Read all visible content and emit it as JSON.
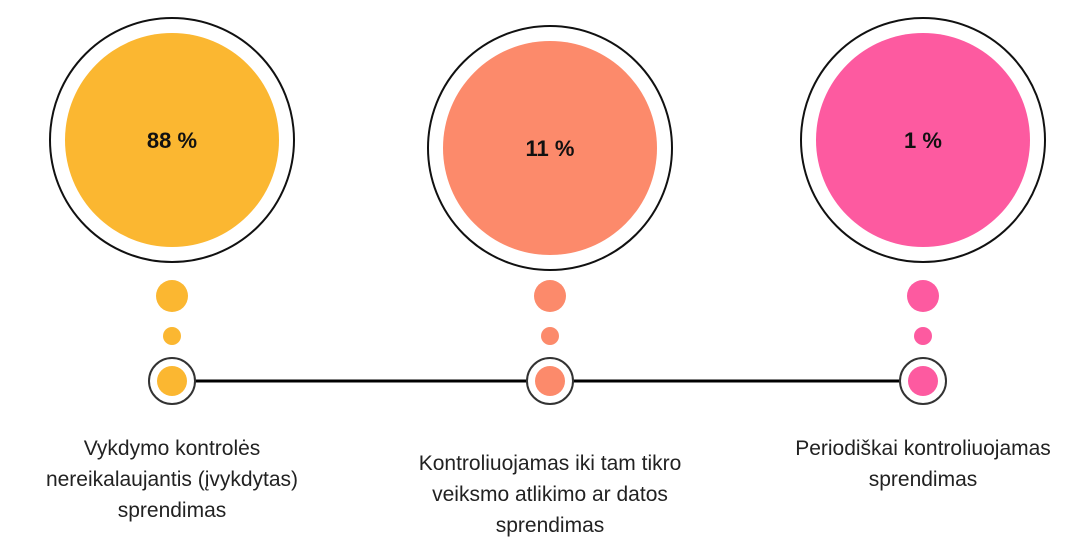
{
  "items": [
    {
      "value_label": "88 %",
      "color": "#fbb731",
      "label": [
        "Vykdymo kontrolės",
        "nereikalaujantis (įvykdytas)",
        "sprendimas"
      ]
    },
    {
      "value_label": "11 %",
      "color": "#fc8a6b",
      "label": [
        "Kontroliuojamas iki tam tikro",
        "veiksmo atlikimo ar datos",
        "sprendimas"
      ]
    },
    {
      "value_label": "1 %",
      "color": "#fd5aa0",
      "label": [
        "Periodiškai kontroliuojamas",
        "sprendimas"
      ]
    }
  ]
}
